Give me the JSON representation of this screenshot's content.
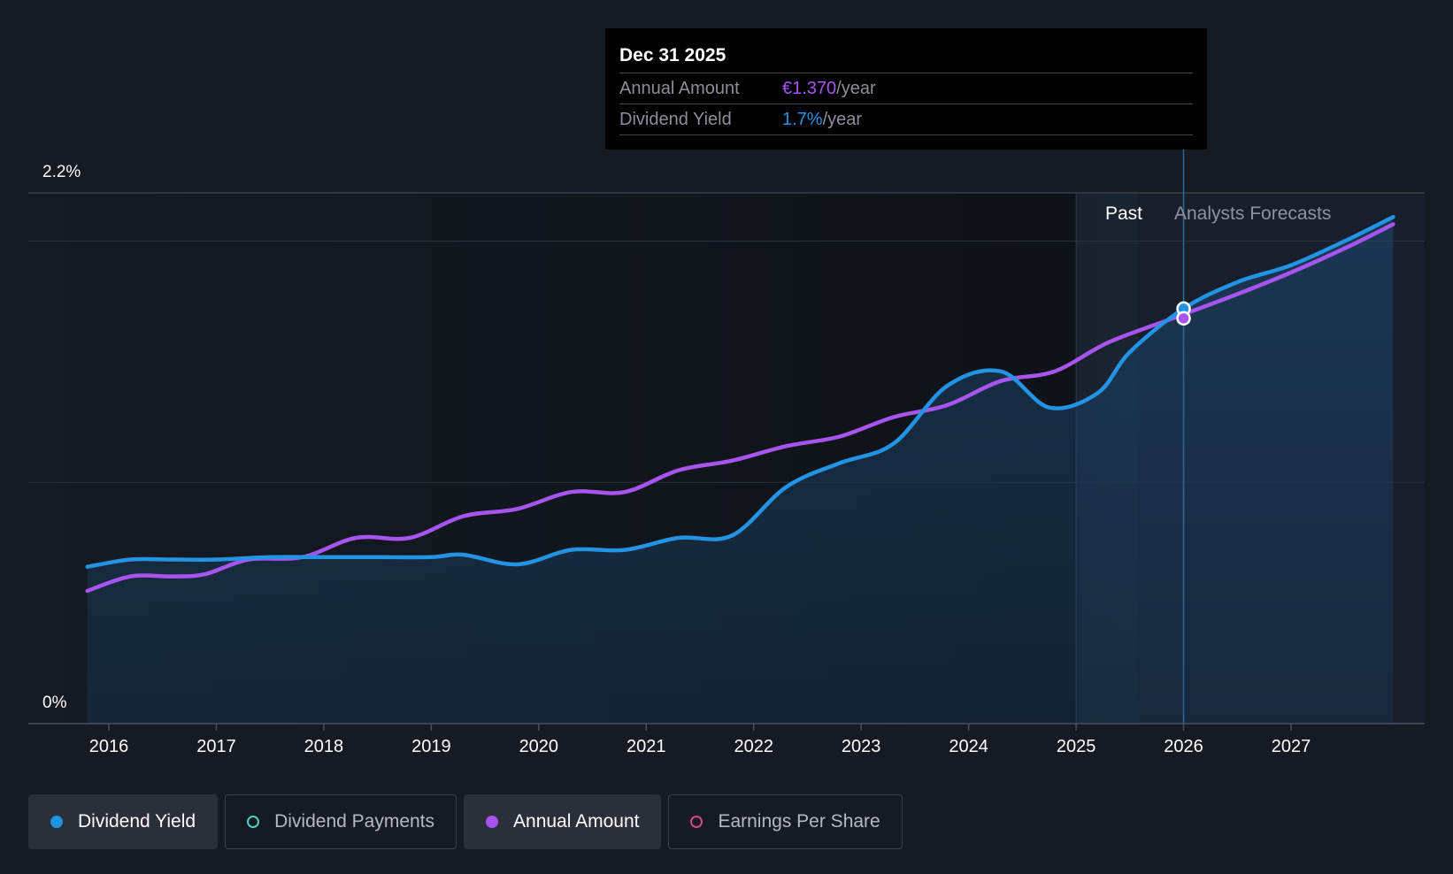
{
  "chart_data": {
    "type": "line",
    "title": "",
    "xlabel": "",
    "ylabel": "",
    "y_tick_labels": [
      "2.2%",
      "0%"
    ],
    "ylim": [
      0,
      2.2
    ],
    "xlim": [
      2015.6,
      2027.85
    ],
    "x_tick_labels": [
      "2016",
      "2017",
      "2018",
      "2019",
      "2020",
      "2021",
      "2022",
      "2023",
      "2024",
      "2025",
      "2026",
      "2027"
    ],
    "x_ticks": [
      2016,
      2017,
      2018,
      2019,
      2020,
      2021,
      2022,
      2023,
      2024,
      2025,
      2026,
      2027
    ],
    "past_forecast_split": 2025.0,
    "forecast_start": 2025.58,
    "period_labels": {
      "past": "Past",
      "forecast": "Analysts Forecasts"
    },
    "series": [
      {
        "name": "Dividend Yield",
        "color": "#2394e3",
        "x": [
          2015.8,
          2016.2,
          2016.6,
          2017.0,
          2017.5,
          2018.0,
          2018.5,
          2019.0,
          2019.3,
          2019.8,
          2020.3,
          2020.8,
          2021.3,
          2021.8,
          2022.3,
          2022.8,
          2023.3,
          2023.8,
          2024.3,
          2024.75,
          2025.2,
          2025.5,
          2026.0,
          2026.5,
          2027.0,
          2027.5,
          2027.95
        ],
        "values": [
          0.65,
          0.68,
          0.68,
          0.68,
          0.69,
          0.69,
          0.69,
          0.69,
          0.7,
          0.66,
          0.72,
          0.72,
          0.77,
          0.78,
          0.98,
          1.08,
          1.16,
          1.4,
          1.46,
          1.31,
          1.37,
          1.54,
          1.72,
          1.83,
          1.9,
          2.0,
          2.1
        ]
      },
      {
        "name": "Annual Amount",
        "color": "#a855f0",
        "x": [
          2015.8,
          2016.2,
          2016.6,
          2016.9,
          2017.3,
          2017.8,
          2018.3,
          2018.8,
          2019.3,
          2019.8,
          2020.3,
          2020.8,
          2021.3,
          2021.8,
          2022.3,
          2022.8,
          2023.3,
          2023.8,
          2024.3,
          2024.8,
          2025.3,
          2025.9,
          2026.5,
          2027.0,
          2027.5,
          2027.95
        ],
        "values": [
          0.55,
          0.61,
          0.61,
          0.62,
          0.68,
          0.69,
          0.77,
          0.77,
          0.86,
          0.89,
          0.96,
          0.96,
          1.05,
          1.09,
          1.15,
          1.19,
          1.27,
          1.32,
          1.42,
          1.46,
          1.58,
          1.68,
          1.78,
          1.87,
          1.97,
          2.07
        ]
      }
    ],
    "legend": [
      {
        "name": "Dividend Yield",
        "active": true,
        "color": "#2394e3"
      },
      {
        "name": "Dividend Payments",
        "active": false,
        "color": "#4fd1c5"
      },
      {
        "name": "Annual Amount",
        "active": true,
        "color": "#a855f0"
      },
      {
        "name": "Earnings Per Share",
        "active": false,
        "color": "#d04a82"
      }
    ],
    "tooltip": {
      "date": "Dec 31 2025",
      "annual_amount_label": "Annual Amount",
      "annual_amount_value": "€1.370",
      "annual_amount_unit": "/year",
      "dividend_yield_label": "Dividend Yield",
      "dividend_yield_value": "1.7%",
      "dividend_yield_unit": "/year",
      "x": 2026.0,
      "yield_at_point": 1.72,
      "amount_at_point": 1.68
    }
  }
}
